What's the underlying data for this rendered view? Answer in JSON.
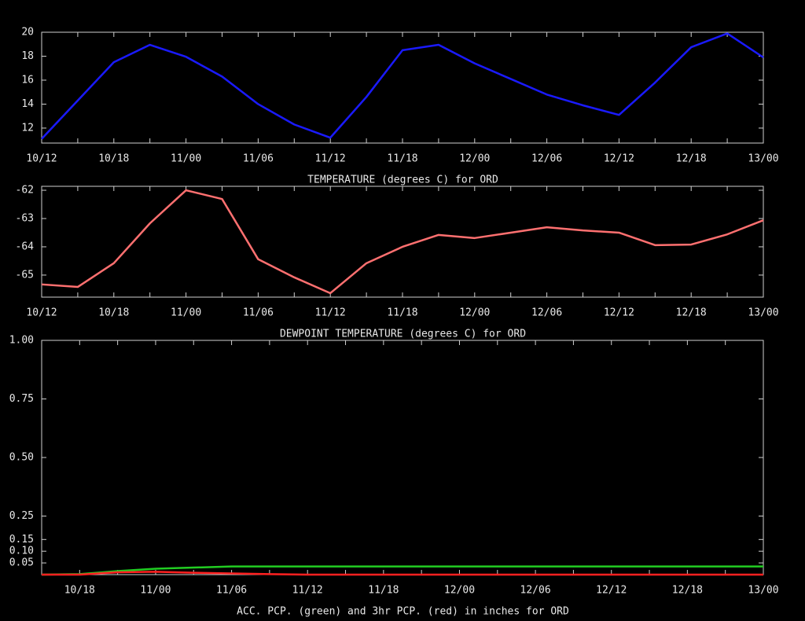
{
  "chart_data": [
    {
      "type": "line",
      "title": "TEMPERATURE (degrees C) for ORD",
      "categories": [
        "10/12",
        null,
        "10/18",
        null,
        "11/00",
        null,
        "11/06",
        null,
        "11/12",
        null,
        "11/18",
        null,
        "12/00",
        null,
        "12/06",
        null,
        "12/12",
        null,
        "12/18",
        null,
        "13/00"
      ],
      "values": [
        11.1,
        14.3,
        17.5,
        18.95,
        17.95,
        16.3,
        14.0,
        12.3,
        11.2,
        14.6,
        18.5,
        18.95,
        17.4,
        16.1,
        14.8,
        13.9,
        13.1,
        15.8,
        18.75,
        19.9,
        17.9
      ],
      "color": "#1a1aff",
      "ylim": [
        10.75,
        20
      ],
      "yticks": [
        12,
        14,
        16,
        18,
        20
      ]
    },
    {
      "type": "line",
      "title": "DEWPOINT TEMPERATURE (degrees C) for ORD",
      "categories": [
        "10/12",
        null,
        "10/18",
        null,
        "11/00",
        null,
        "11/06",
        null,
        "11/12",
        null,
        "11/18",
        null,
        "12/00",
        null,
        "12/06",
        null,
        "12/12",
        null,
        "12/18",
        null,
        "13/00"
      ],
      "values": [
        -65.33,
        -65.42,
        -64.58,
        -63.17,
        -62.0,
        -62.31,
        -64.44,
        -65.08,
        -65.64,
        -64.58,
        -64.0,
        -63.58,
        -63.69,
        -63.5,
        -63.31,
        -63.42,
        -63.5,
        -63.94,
        -63.92,
        -63.56,
        -63.06
      ],
      "color": "#ff7070",
      "ylim": [
        -65.78,
        -61.86
      ],
      "yticks": [
        -65,
        -64,
        -63,
        -62
      ]
    },
    {
      "type": "line",
      "title": "ACC. PCP. (green) and 3hr PCP. (red) in inches for ORD",
      "categories": [
        null,
        "10/18",
        null,
        "11/00",
        null,
        "11/06",
        null,
        "11/12",
        null,
        "11/18",
        null,
        "12/00",
        null,
        "12/06",
        null,
        "12/12",
        null,
        "12/18",
        null,
        "13/00"
      ],
      "series": [
        {
          "color": "#22cc22",
          "values": [
            0,
            0.002,
            0.015,
            0.025,
            0.03,
            0.035,
            0.035,
            0.035,
            0.035,
            0.035,
            0.035,
            0.035,
            0.035,
            0.035,
            0.035,
            0.035,
            0.035,
            0.035,
            0.035,
            0.035
          ]
        },
        {
          "color": "#ff2020",
          "values": [
            0,
            0,
            0.01,
            0.012,
            0.008,
            0.005,
            0.002,
            0,
            0,
            0,
            0,
            0,
            0,
            0,
            0,
            0,
            0,
            0,
            0,
            0
          ]
        }
      ],
      "ylim": [
        0,
        1
      ],
      "yticks": [
        {
          "value": 0.05,
          "label": "0.05"
        },
        {
          "value": 0.1,
          "label": "0.10"
        },
        {
          "value": 0.15,
          "label": "0.15"
        },
        {
          "value": 0.25,
          "label": "0.25"
        },
        {
          "value": 0.5,
          "label": "0.50"
        },
        {
          "value": 0.75,
          "label": "0.75"
        },
        {
          "value": 1,
          "label": "1.00"
        }
      ]
    }
  ]
}
